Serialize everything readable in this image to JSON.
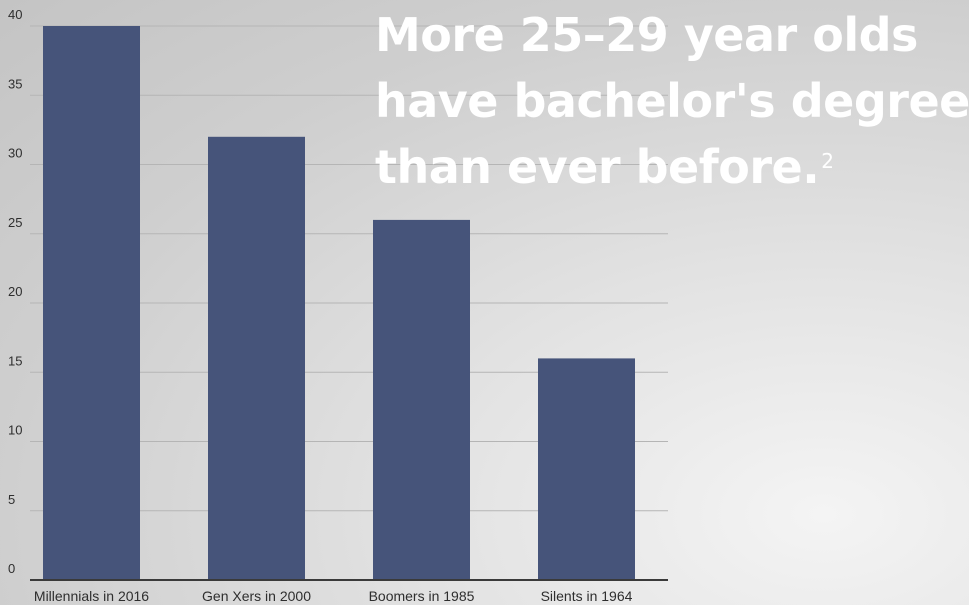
{
  "headline": {
    "line1": "More 25–29 year olds",
    "line2": "have bachelor's degrees",
    "line3": "than ever before.",
    "footnote": "2"
  },
  "chart_data": {
    "type": "bar",
    "categories": [
      "Millennials in 2016",
      "Gen Xers in 2000",
      "Boomers in 1985",
      "Silents in 1964"
    ],
    "values": [
      40,
      32,
      26,
      16
    ],
    "ylim": [
      0,
      40
    ],
    "yticks": [
      0,
      5,
      10,
      15,
      20,
      25,
      30,
      35,
      40
    ],
    "grid": true,
    "bar_color": "#46547a",
    "grid_color": "#b5b5b5",
    "axis_color": "#3a3a3a",
    "label_color": "#2e2e2e"
  }
}
